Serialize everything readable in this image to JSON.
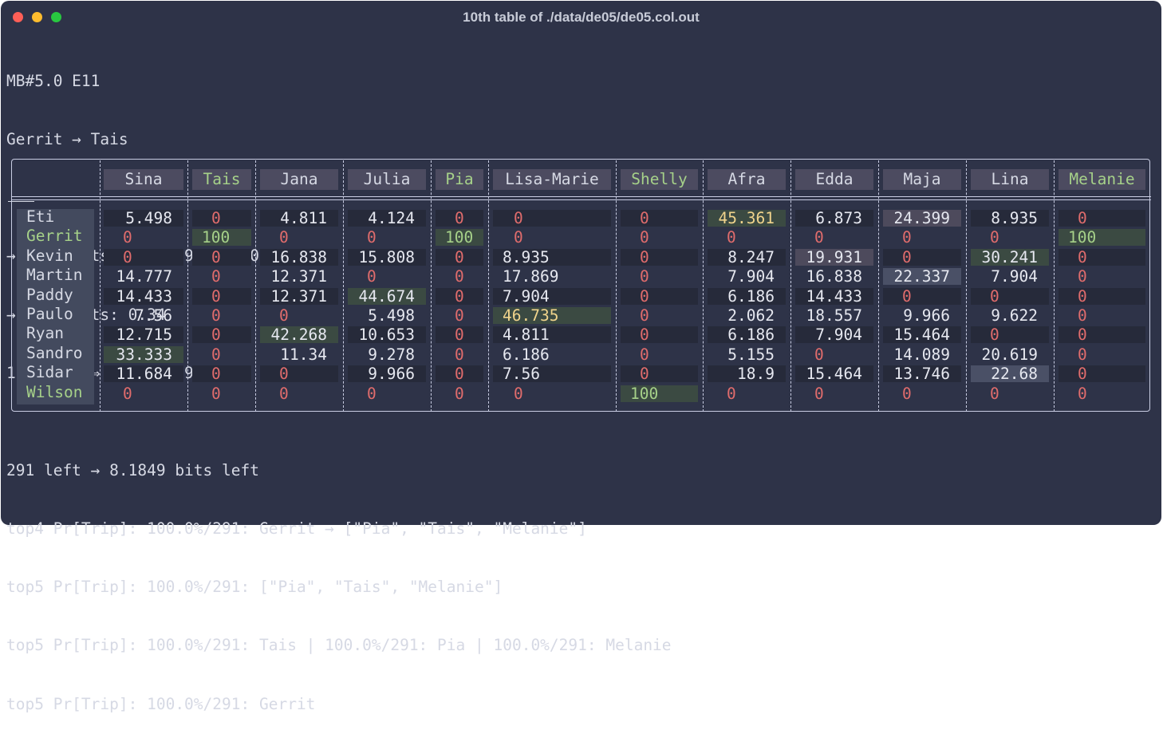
{
  "window": {
    "title": "10th table of ./data/de05/de05.col.out",
    "controls": [
      "close",
      "minimize",
      "maximize"
    ]
  },
  "header_lines": [
    "MB#5.0 E11",
    "Gerrit → Tais",
    "",
    "→ I[l]/bits: {0: 3.96, 1: 0.10}",
    "→ E[I]/bits: 0.34",
    "1 lights ⇒ I = 6.0397 bits"
  ],
  "table": {
    "columns": [
      "Sina",
      "Tais",
      "Jana",
      "Julia",
      "Pia",
      "Lisa-Marie",
      "Shelly",
      "Afra",
      "Edda",
      "Maja",
      "Lina",
      "Melanie"
    ],
    "highlighted_columns": [
      "Tais",
      "Pia",
      "Shelly",
      "Melanie"
    ],
    "rows": [
      {
        "name": "Eti",
        "values": [
          "5.498",
          "0",
          "4.811",
          "4.124",
          "0",
          "0",
          "0",
          "45.361",
          "6.873",
          "24.399",
          "8.935",
          "0"
        ]
      },
      {
        "name": "Gerrit",
        "values": [
          "0",
          "100",
          "0",
          "0",
          "100",
          "0",
          "0",
          "0",
          "0",
          "0",
          "0",
          "100"
        ]
      },
      {
        "name": "Kevin",
        "values": [
          "0",
          "0",
          "16.838",
          "15.808",
          "0",
          "8.935",
          "0",
          "8.247",
          "19.931",
          "0",
          "30.241",
          "0"
        ]
      },
      {
        "name": "Martin",
        "values": [
          "14.777",
          "0",
          "12.371",
          "0",
          "0",
          "17.869",
          "0",
          "7.904",
          "16.838",
          "22.337",
          "7.904",
          "0"
        ]
      },
      {
        "name": "Paddy",
        "values": [
          "14.433",
          "0",
          "12.371",
          "44.674",
          "0",
          "7.904",
          "0",
          "6.186",
          "14.433",
          "0",
          "0",
          "0"
        ]
      },
      {
        "name": "Paulo",
        "values": [
          "7.56",
          "0",
          "0",
          "5.498",
          "0",
          "46.735",
          "0",
          "2.062",
          "18.557",
          "9.966",
          "9.622",
          "0"
        ]
      },
      {
        "name": "Ryan",
        "values": [
          "12.715",
          "0",
          "42.268",
          "10.653",
          "0",
          "4.811",
          "0",
          "6.186",
          "7.904",
          "15.464",
          "0",
          "0"
        ]
      },
      {
        "name": "Sandro",
        "values": [
          "33.333",
          "0",
          "11.34",
          "9.278",
          "0",
          "6.186",
          "0",
          "5.155",
          "0",
          "14.089",
          "20.619",
          "0"
        ]
      },
      {
        "name": "Sidar",
        "values": [
          "11.684",
          "0",
          "0",
          "9.966",
          "0",
          "7.56",
          "0",
          "18.9",
          "15.464",
          "13.746",
          "22.68",
          "0"
        ]
      },
      {
        "name": "Wilson",
        "values": [
          "0",
          "0",
          "0",
          "0",
          "0",
          "0",
          "100",
          "0",
          "0",
          "0",
          "0",
          "0"
        ]
      }
    ],
    "highlighted_rows": [
      "Gerrit",
      "Wilson"
    ]
  },
  "footer_lines": [
    "291 left → 8.1849 bits left",
    "top4 Pr[Trip]: 100.0%/291: Gerrit → [\"Pia\", \"Tais\", \"Melanie\"]",
    "top5 Pr[Trip]: 100.0%/291: [\"Pia\", \"Tais\", \"Melanie\"]",
    "top5 Pr[Trip]: 100.0%/291: Tais | 100.0%/291: Pia | 100.0%/291: Melanie",
    "top5 Pr[Trip]: 100.0%/291: Gerrit"
  ],
  "colors": {
    "background": "#2e3348",
    "text": "#d6d9e4",
    "zero": "#e06c6c",
    "highlight_text": "#a6d189",
    "cell_green": "#3b4a42",
    "cell_blue": "#4a5066",
    "cell_mauve": "#4d4a5c",
    "yellow_text": "#f0d48c"
  }
}
